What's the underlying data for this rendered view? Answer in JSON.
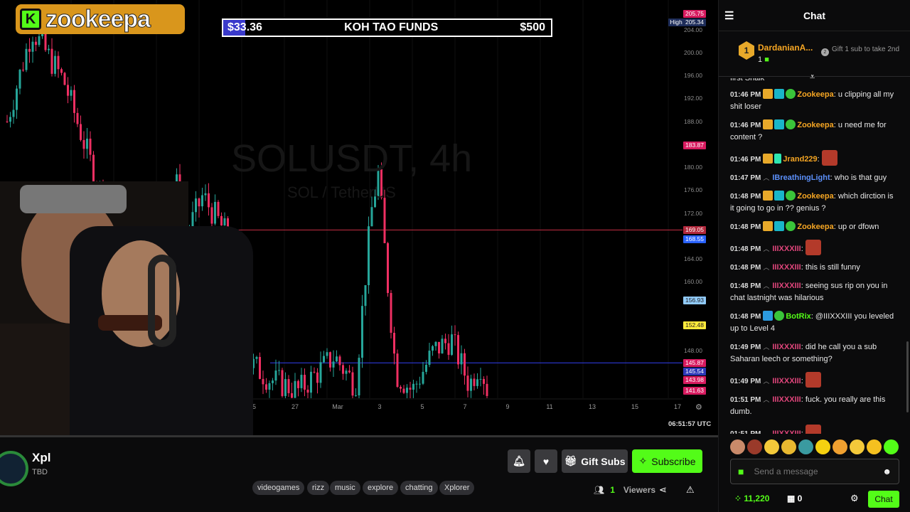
{
  "overlay": {
    "logo_text": "zookeepa",
    "logo_letter": "K",
    "goal": {
      "current": "$33.36",
      "title": "KOH TAO FUNDS",
      "target": "$500",
      "progress": 0.0667
    }
  },
  "chart_watermark": {
    "symbol": "SOLUSDT, 4h",
    "pair": "SOL / TetherUS"
  },
  "price_axis": [
    "200.00",
    "196.00",
    "192.00",
    "188.00",
    "180.00",
    "176.00",
    "172.00",
    "164.00",
    "160.00",
    "148.00",
    "204.00"
  ],
  "price_tags": [
    {
      "text": "205.75",
      "color": "#d81b60"
    },
    {
      "text": "205.34",
      "color": "#1e2d5a",
      "label": "High"
    },
    {
      "text": "183.87",
      "color": "#d81b60"
    },
    {
      "text": "169.05",
      "color": "#b2283c"
    },
    {
      "text": "168.55",
      "color": "#2962ff"
    },
    {
      "text": "156.93",
      "color": "#90caf9"
    },
    {
      "text": "152.48",
      "color": "#ffeb3b"
    },
    {
      "text": "145.87",
      "color": "#d81b60"
    },
    {
      "text": "145.54",
      "color": "#2d38b8"
    },
    {
      "text": "143.98",
      "color": "#d81b60"
    },
    {
      "text": "141.63",
      "color": "#d81b60"
    }
  ],
  "time_axis": [
    "25",
    "27",
    "Mar",
    "3",
    "5",
    "7",
    "9",
    "11",
    "13",
    "15",
    "17"
  ],
  "clock": "06:51:57 UTC",
  "channel": {
    "name": "Xpl",
    "subtitle": "TBD"
  },
  "actions": {
    "gift": "Gift Subs",
    "subscribe": "Subscribe"
  },
  "tags": [
    "videogames",
    "rizz",
    "music",
    "explore",
    "chatting",
    "Xplorer"
  ],
  "viewers": {
    "count": "1",
    "label": "Viewers"
  },
  "chat": {
    "title": "Chat",
    "leader": {
      "rank": "1",
      "name": "DardanianA...",
      "count": "1",
      "next_rank": "2",
      "next_text": "Gift 1 sub to take 2nd"
    },
    "partial": "first Snaik",
    "messages": [
      {
        "time": "01:46 PM",
        "user": "Zookeepa",
        "color": "#f6a623",
        "badges": "owner",
        "text": ": u clipping all my shit loser"
      },
      {
        "time": "01:46 PM",
        "user": "Zookeepa",
        "color": "#f6a623",
        "badges": "owner",
        "text": ": u need me for content ?"
      },
      {
        "time": "01:46 PM",
        "user": "Jrand229",
        "color": "#f6a623",
        "badges": "sub",
        "text": ":",
        "emote": true
      },
      {
        "time": "01:47 PM",
        "user": "IBreathingLight",
        "color": "#5b8ff9",
        "badges": "chev",
        "text": ": who is that guy"
      },
      {
        "time": "01:48 PM",
        "user": "Zookeepa",
        "color": "#f6a623",
        "badges": "owner",
        "text": ": which dirction is it going to go in ?? genius ?"
      },
      {
        "time": "01:48 PM",
        "user": "Zookeepa",
        "color": "#f6a623",
        "badges": "owner",
        "text": ": up or dfown"
      },
      {
        "time": "01:48 PM",
        "user": "IIIXXXIII",
        "color": "#e0457b",
        "badges": "chev",
        "text": ":",
        "emote": true
      },
      {
        "time": "01:48 PM",
        "user": "IIIXXXIII",
        "color": "#e0457b",
        "badges": "chev",
        "text": ": this is still funny"
      },
      {
        "time": "01:48 PM",
        "user": "IIIXXXIII",
        "color": "#e0457b",
        "badges": "chev",
        "text": ": seeing sus rip on you in chat lastnight was hilarious"
      },
      {
        "time": "01:48 PM",
        "user": "BotRix",
        "color": "#53fc18",
        "badges": "bot",
        "text": ": @IIIXXXIII you leveled up to Level 4"
      },
      {
        "time": "01:49 PM",
        "user": "IIIXXXIII",
        "color": "#e0457b",
        "badges": "chev",
        "text": ": did he call you a sub Saharan leech or something?"
      },
      {
        "time": "01:49 PM",
        "user": "IIIXXXIII",
        "color": "#e0457b",
        "badges": "chev",
        "text": ":",
        "emote": true
      },
      {
        "time": "01:51 PM",
        "user": "IIIXXXIII",
        "color": "#e0457b",
        "badges": "chev",
        "text": ": fuck. you really are this dumb."
      },
      {
        "time": "01:51 PM",
        "user": "IIIXXXIII",
        "color": "#e0457b",
        "badges": "chev",
        "text": ":",
        "emote": true
      }
    ],
    "input_placeholder": "Send a message",
    "points": "11,220",
    "store_count": "0",
    "send_label": "Chat"
  },
  "colors": {
    "accent": "#53fc18",
    "up": "#26a69a",
    "down": "#ef2f62"
  }
}
